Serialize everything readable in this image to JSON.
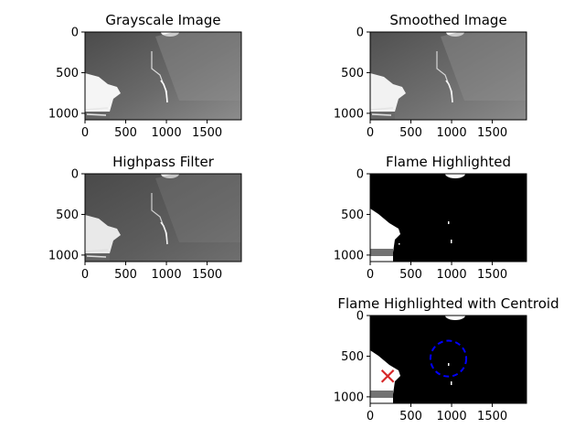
{
  "chart_data": [
    {
      "type": "image",
      "title": "Grayscale Image",
      "xlim": [
        0,
        1920
      ],
      "ylim": [
        1080,
        0
      ],
      "xticks": [
        0,
        500,
        1000,
        1500
      ],
      "xticklabels": [
        "0",
        "500",
        "1000",
        "1500"
      ],
      "yticks": [
        0,
        500,
        1000
      ],
      "yticklabels": [
        "0",
        "500",
        "1000"
      ],
      "colormap": "gray"
    },
    {
      "type": "image",
      "title": "Smoothed Image",
      "xlim": [
        0,
        1920
      ],
      "ylim": [
        1080,
        0
      ],
      "xticks": [
        0,
        500,
        1000,
        1500
      ],
      "xticklabels": [
        "0",
        "500",
        "1000",
        "1500"
      ],
      "yticks": [
        0,
        500,
        1000
      ],
      "yticklabels": [
        "0",
        "500",
        "1000"
      ],
      "colormap": "gray"
    },
    {
      "type": "image",
      "title": "Highpass Filter",
      "xlim": [
        0,
        1920
      ],
      "ylim": [
        1080,
        0
      ],
      "xticks": [
        0,
        500,
        1000,
        1500
      ],
      "xticklabels": [
        "0",
        "500",
        "1000",
        "1500"
      ],
      "yticks": [
        0,
        500,
        1000
      ],
      "yticklabels": [
        "0",
        "500",
        "1000"
      ],
      "colormap": "gray"
    },
    {
      "type": "image",
      "title": "Flame Highlighted",
      "xlim": [
        0,
        1920
      ],
      "ylim": [
        1080,
        0
      ],
      "xticks": [
        0,
        500,
        1000,
        1500
      ],
      "xticklabels": [
        "0",
        "500",
        "1000",
        "1500"
      ],
      "yticks": [
        0,
        500,
        1000
      ],
      "yticklabels": [
        "0",
        "500",
        "1000"
      ],
      "colormap": "binary mask"
    },
    {
      "type": "image",
      "title": "Flame Highlighted with Centroid",
      "xlim": [
        0,
        1920
      ],
      "ylim": [
        1080,
        0
      ],
      "xticks": [
        0,
        500,
        1000,
        1500
      ],
      "xticklabels": [
        "0",
        "500",
        "1000",
        "1500"
      ],
      "yticks": [
        0,
        500,
        1000
      ],
      "yticklabels": [
        "0",
        "500",
        "1000"
      ],
      "colormap": "binary mask",
      "centroid_marker": {
        "x": 215,
        "y": 745,
        "marker": "x",
        "color": "#d62728"
      },
      "circle": {
        "cx": 960,
        "cy": 530,
        "r": 220,
        "style": "dashed",
        "color": "#0000ff"
      }
    }
  ]
}
